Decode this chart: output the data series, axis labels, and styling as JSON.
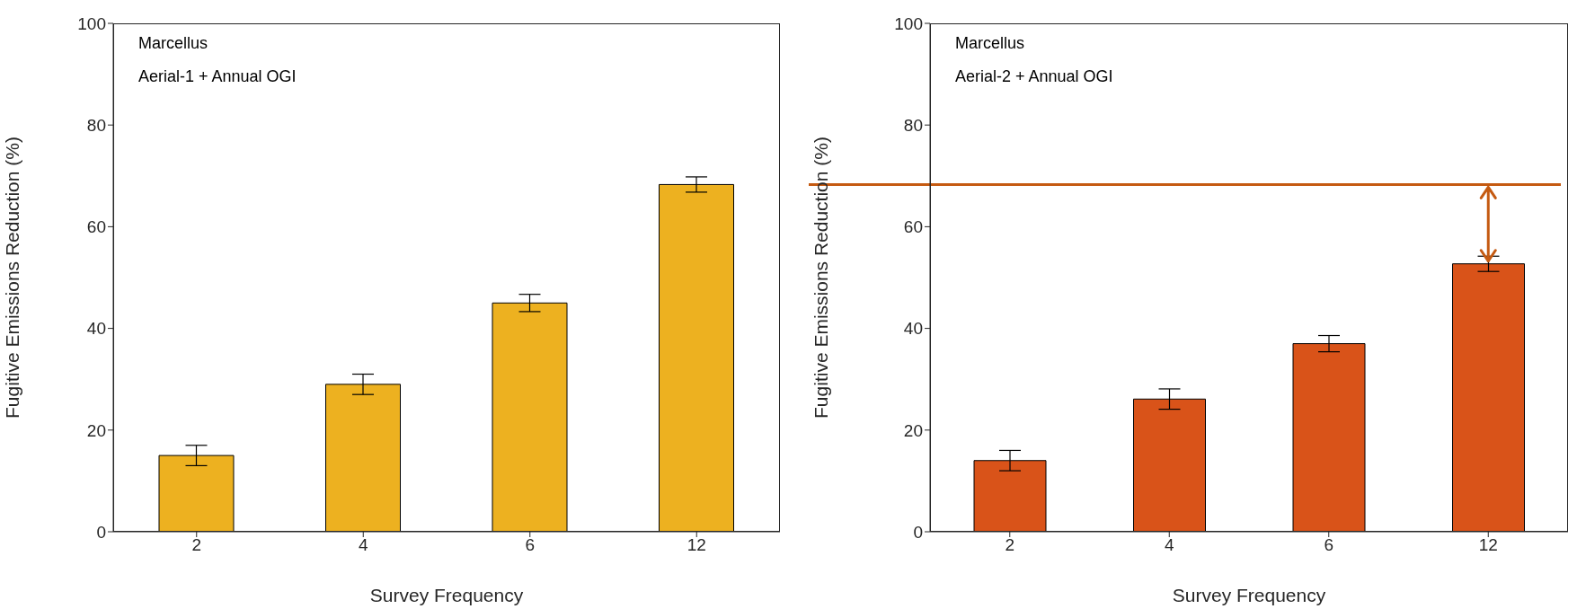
{
  "chart_data": [
    {
      "type": "bar",
      "annotations": [
        "Marcellus",
        "Aerial-1 + Annual OGI"
      ],
      "xlabel": "Survey Frequency",
      "ylabel": "Fugitive Emissions Reduction (%)",
      "categories": [
        "2",
        "4",
        "6",
        "12"
      ],
      "values": [
        15,
        29,
        45,
        68.3
      ],
      "errors": [
        2,
        2,
        1.7,
        1.5
      ],
      "color": "#edb120",
      "ylim": [
        0,
        100
      ],
      "yticks": [
        0,
        20,
        40,
        60,
        80,
        100
      ]
    },
    {
      "type": "bar",
      "annotations": [
        "Marcellus",
        "Aerial-2 + Annual OGI"
      ],
      "xlabel": "Survey Frequency",
      "ylabel": "Fugitive Emissions Reduction (%)",
      "categories": [
        "2",
        "4",
        "6",
        "12"
      ],
      "values": [
        14,
        26.1,
        37,
        52.7
      ],
      "errors": [
        2,
        2,
        1.6,
        1.5
      ],
      "color": "#d95319",
      "ylim": [
        0,
        100
      ],
      "yticks": [
        0,
        20,
        40,
        60,
        80,
        100
      ],
      "ref_lines": [
        {
          "axis": "y",
          "value": 68.3,
          "color": "#c55a11"
        }
      ]
    }
  ]
}
